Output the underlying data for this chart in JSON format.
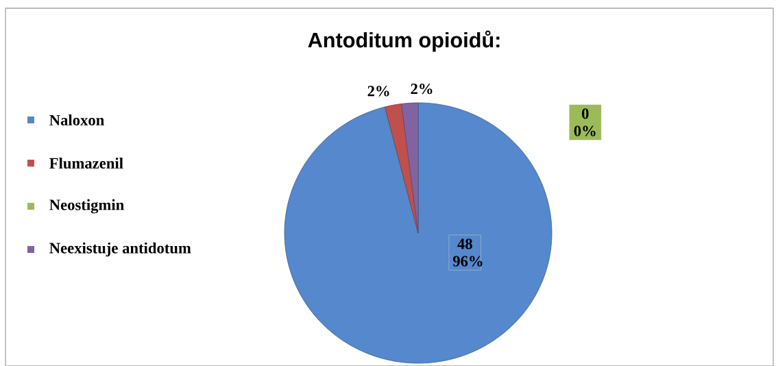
{
  "chart_data": {
    "type": "pie",
    "title": "Antoditum opioidů:",
    "categories": [
      "Naloxon",
      "Flumazenil",
      "Neostigmin",
      "Neexistuje antidotum"
    ],
    "values": [
      96,
      2,
      0,
      2
    ],
    "value_labels": [
      "48 96%",
      "2%",
      "0 0%",
      "2%"
    ],
    "colors": [
      "#5588cc",
      "#c0504d",
      "#9bbb59",
      "#8064a2"
    ],
    "legend": "left"
  }
}
